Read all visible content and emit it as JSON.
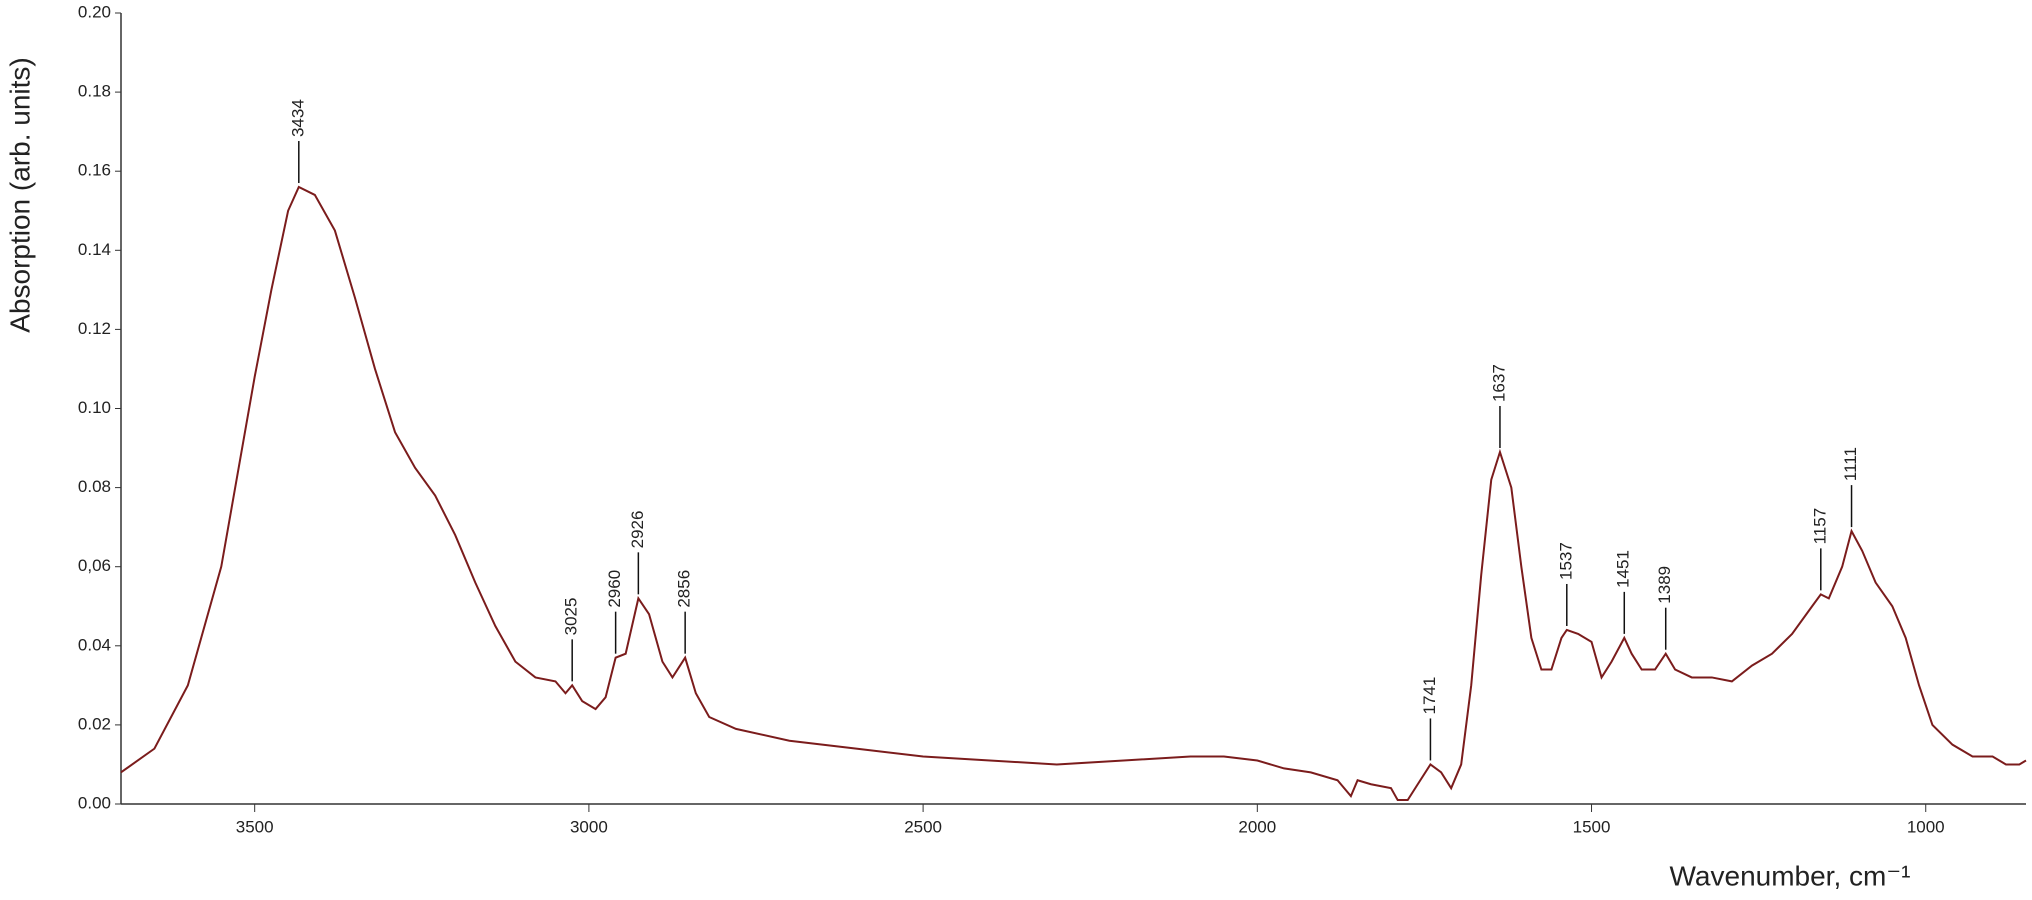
{
  "chart_data": {
    "type": "line",
    "x_label": "Wavenumber, cm⁻¹",
    "y_label": "Absorption (arb. units)",
    "color": "#7b1c1c",
    "xlim": [
      3700,
      850
    ],
    "ylim": [
      0,
      0.2
    ],
    "xticks": [
      3500,
      3000,
      2500,
      2000,
      1500,
      1000
    ],
    "yticks": [
      {
        "value": 0,
        "label": "0.00"
      },
      {
        "value": 0.02,
        "label": "0.02"
      },
      {
        "value": 0.04,
        "label": "0.04"
      },
      {
        "value": 0.06,
        "label": "0,06"
      },
      {
        "value": 0.08,
        "label": "0.08"
      },
      {
        "value": 0.1,
        "label": "0.10"
      },
      {
        "value": 0.12,
        "label": "0.12"
      },
      {
        "value": 0.14,
        "label": "0.14"
      },
      {
        "value": 0.16,
        "label": "0.16"
      },
      {
        "value": 0.18,
        "label": "0.18"
      },
      {
        "value": 0.2,
        "label": "0.20"
      }
    ],
    "x": [
      3700,
      3650,
      3600,
      3550,
      3500,
      3475,
      3450,
      3434,
      3410,
      3380,
      3350,
      3320,
      3290,
      3260,
      3230,
      3200,
      3170,
      3140,
      3110,
      3080,
      3050,
      3035,
      3025,
      3010,
      2990,
      2975,
      2960,
      2945,
      2926,
      2910,
      2890,
      2875,
      2856,
      2840,
      2820,
      2780,
      2700,
      2600,
      2500,
      2400,
      2300,
      2200,
      2100,
      2050,
      2000,
      1960,
      1920,
      1880,
      1860,
      1850,
      1830,
      1800,
      1790,
      1775,
      1760,
      1741,
      1725,
      1710,
      1695,
      1680,
      1665,
      1650,
      1637,
      1620,
      1605,
      1590,
      1575,
      1560,
      1545,
      1537,
      1520,
      1500,
      1485,
      1470,
      1451,
      1440,
      1425,
      1405,
      1389,
      1375,
      1350,
      1320,
      1290,
      1260,
      1230,
      1200,
      1170,
      1157,
      1145,
      1125,
      1111,
      1095,
      1075,
      1050,
      1030,
      1010,
      990,
      960,
      930,
      900,
      880,
      860,
      850
    ],
    "values": [
      0.008,
      0.014,
      0.03,
      0.06,
      0.108,
      0.13,
      0.15,
      0.156,
      0.154,
      0.145,
      0.128,
      0.11,
      0.094,
      0.085,
      0.078,
      0.068,
      0.056,
      0.045,
      0.036,
      0.032,
      0.031,
      0.028,
      0.03,
      0.026,
      0.024,
      0.027,
      0.037,
      0.038,
      0.052,
      0.048,
      0.036,
      0.032,
      0.037,
      0.028,
      0.022,
      0.019,
      0.016,
      0.014,
      0.012,
      0.011,
      0.01,
      0.011,
      0.012,
      0.012,
      0.011,
      0.009,
      0.008,
      0.006,
      0.002,
      0.006,
      0.005,
      0.004,
      0.001,
      0.001,
      0.005,
      0.01,
      0.008,
      0.004,
      0.01,
      0.03,
      0.058,
      0.082,
      0.089,
      0.08,
      0.06,
      0.042,
      0.034,
      0.034,
      0.042,
      0.044,
      0.043,
      0.041,
      0.032,
      0.036,
      0.042,
      0.038,
      0.034,
      0.034,
      0.038,
      0.034,
      0.032,
      0.032,
      0.031,
      0.035,
      0.038,
      0.043,
      0.05,
      0.053,
      0.052,
      0.06,
      0.069,
      0.064,
      0.056,
      0.05,
      0.042,
      0.03,
      0.02,
      0.015,
      0.012,
      0.012,
      0.01,
      0.01,
      0.011
    ],
    "annotations": [
      3434,
      3025,
      2960,
      2926,
      2856,
      1741,
      1637,
      1537,
      1451,
      1389,
      1157,
      1111
    ]
  }
}
